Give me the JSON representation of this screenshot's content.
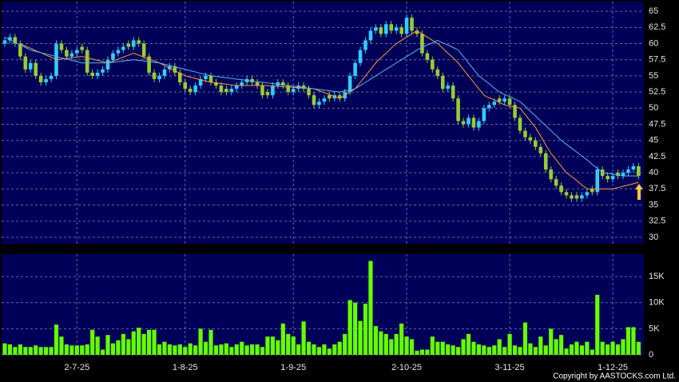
{
  "chart_data": [
    {
      "type": "candlestick",
      "categories": [
        null,
        null,
        null,
        null,
        null,
        null,
        null,
        null,
        null,
        null,
        null,
        null,
        null,
        null,
        "2-7-25",
        null,
        null,
        null,
        null,
        null,
        null,
        null,
        null,
        null,
        null,
        null,
        null,
        null,
        null,
        null,
        null,
        null,
        null,
        null,
        null,
        "1-8-25",
        null,
        null,
        null,
        null,
        null,
        null,
        null,
        null,
        null,
        null,
        null,
        null,
        null,
        null,
        null,
        null,
        null,
        null,
        null,
        null,
        "1-9-25",
        null,
        null,
        null,
        null,
        null,
        null,
        null,
        null,
        null,
        null,
        null,
        null,
        null,
        null,
        null,
        null,
        null,
        null,
        null,
        null,
        null,
        "2-10-25",
        null,
        null,
        null,
        null,
        null,
        null,
        null,
        null,
        null,
        null,
        null,
        null,
        null,
        null,
        null,
        null,
        null,
        null,
        null,
        "3-11-25",
        null,
        null,
        null,
        null,
        null,
        null,
        null,
        null,
        null,
        null,
        null,
        null,
        null,
        null,
        null,
        null,
        null,
        null,
        null,
        "1-12-25",
        null,
        null,
        null,
        null,
        null
      ],
      "open": [
        60,
        60.5,
        61,
        60,
        58,
        56,
        57,
        55,
        54,
        54.5,
        55,
        60,
        59,
        58,
        58.5,
        59.5,
        59,
        55.5,
        55,
        55.5,
        56,
        57.5,
        58.5,
        59,
        60,
        59.5,
        60.5,
        60,
        58,
        55.5,
        54.5,
        55,
        56,
        56.5,
        55.5,
        54,
        53,
        52.5,
        53.5,
        54.5,
        55,
        54,
        53.5,
        53,
        52.5,
        53,
        53.5,
        54,
        54.5,
        54,
        53.5,
        52.5,
        52,
        53.5,
        54,
        53.5,
        52.5,
        53,
        53.5,
        53,
        52,
        50.5,
        51,
        52,
        51.5,
        52,
        51.5,
        52.5,
        55,
        57,
        59,
        60.5,
        62,
        62.5,
        61.5,
        63,
        62,
        62.5,
        61.5,
        64,
        62,
        61.5,
        58.5,
        57.5,
        56,
        55,
        53,
        53.5,
        51.5,
        48,
        47.5,
        48.5,
        47,
        48,
        50,
        50.5,
        51.5,
        51,
        51.5,
        50.5,
        48.5,
        46.5,
        45.5,
        45,
        44,
        43,
        40.5,
        39,
        38,
        37,
        36.5,
        36.5,
        36,
        36.5,
        37.5,
        37,
        40.5,
        39.5,
        39,
        40,
        39.5,
        40,
        40.5,
        41
      ],
      "high": [
        61,
        61.5,
        61.5,
        60.5,
        58.5,
        57.5,
        57.5,
        55.5,
        55,
        55.5,
        60.5,
        60.5,
        59.5,
        59,
        59.5,
        60,
        59.5,
        56,
        56,
        56.5,
        58,
        59,
        59.5,
        60,
        60.5,
        61,
        61,
        60.5,
        58.5,
        56,
        55.5,
        56.5,
        57,
        57,
        56,
        54.5,
        53.5,
        54,
        55,
        55.5,
        55.5,
        54.5,
        54,
        53.5,
        53.5,
        54,
        54.5,
        55,
        55,
        54.5,
        54,
        53,
        54,
        54.5,
        54.5,
        54,
        53.5,
        54,
        54,
        53.5,
        52.5,
        51.5,
        52,
        52.5,
        52.5,
        52.5,
        53,
        55.5,
        57.5,
        59.5,
        61,
        62.5,
        63,
        63,
        63.5,
        63.5,
        63,
        63,
        64.5,
        64.5,
        62.5,
        62,
        59,
        58,
        56.5,
        55.5,
        54,
        54,
        52,
        48.5,
        49,
        49,
        48.5,
        50.5,
        51,
        51.5,
        52,
        52,
        52,
        51,
        49,
        47,
        46,
        45.5,
        44.5,
        43.5,
        41,
        39.5,
        38.5,
        37.5,
        37,
        37,
        37,
        37.5,
        38,
        41,
        41,
        40,
        40,
        40.5,
        40.5,
        41,
        41.5,
        41.5
      ],
      "low": [
        59.5,
        60,
        59.5,
        57.5,
        55.5,
        55.5,
        54.5,
        53.5,
        53.5,
        54,
        54.5,
        58.5,
        57.5,
        57.5,
        58,
        58.5,
        55,
        54.5,
        54.5,
        55,
        55.5,
        57,
        58,
        58.5,
        59,
        59,
        59.5,
        57.5,
        55,
        54,
        54,
        54.5,
        55.5,
        55,
        53.5,
        52.5,
        52,
        52,
        53,
        54,
        53.5,
        53,
        52,
        52,
        52,
        52.5,
        53,
        53.5,
        53.5,
        53,
        51.5,
        51.5,
        51.5,
        53,
        53,
        52,
        52,
        52.5,
        52.5,
        51.5,
        50,
        50,
        50.5,
        51,
        51,
        51,
        51,
        52,
        54.5,
        56.5,
        58.5,
        60,
        61.5,
        61,
        61,
        61.5,
        61.5,
        61,
        61,
        61.5,
        61,
        58,
        57,
        55.5,
        54.5,
        52.5,
        52.5,
        51,
        47.5,
        47,
        47,
        46.5,
        46.5,
        47.5,
        49.5,
        50,
        50.5,
        50.5,
        50,
        48,
        46,
        45,
        44.5,
        43.5,
        42.5,
        40,
        38.5,
        37.5,
        36.5,
        36,
        35.5,
        35.5,
        35.5,
        36,
        36.5,
        36.5,
        39,
        38.5,
        38.5,
        39,
        39,
        39.5,
        40,
        39
      ],
      "close": [
        60.5,
        61,
        60,
        58,
        56,
        57,
        55,
        54,
        54.5,
        55,
        60,
        59,
        58,
        58.5,
        59,
        59,
        55.5,
        55,
        55.5,
        56,
        57.5,
        58.5,
        59,
        59.5,
        59.5,
        60.5,
        60,
        58,
        55.5,
        54.5,
        55,
        56,
        56.5,
        55.5,
        54,
        53,
        52.5,
        53.5,
        54.5,
        55,
        54,
        53.5,
        52.5,
        52.5,
        53,
        53.5,
        54,
        54.5,
        54,
        53.5,
        52,
        52,
        53.5,
        54,
        53.5,
        52.5,
        53,
        53.5,
        53,
        52,
        50.5,
        51,
        51.5,
        51.5,
        52,
        51.5,
        52.5,
        55,
        57,
        59,
        60.5,
        62,
        62.5,
        61.5,
        63,
        62,
        62.5,
        61.5,
        64,
        62,
        61.5,
        58.5,
        57.5,
        56,
        55,
        53,
        53.5,
        51.5,
        48,
        47.5,
        48.5,
        47,
        48,
        50,
        50.5,
        51,
        51,
        51.5,
        50.5,
        48.5,
        46.5,
        45.5,
        45,
        44,
        43,
        40.5,
        39,
        38,
        37,
        36.5,
        36,
        36,
        36.5,
        37,
        37,
        40.5,
        39.5,
        39,
        39.5,
        39.5,
        40,
        40.5,
        41,
        39.5
      ],
      "up_color": "#33ccff",
      "down_color": "#99cc33",
      "series": [
        {
          "color": "#ff9933",
          "values": [
            null,
            null,
            null,
            60,
            59.6,
            59.3,
            58.9,
            58.6,
            58.2,
            57.9,
            57.5,
            57.6,
            57.7,
            57.8,
            57.9,
            58,
            57.8,
            57.6,
            57.4,
            57.2,
            57,
            57.3,
            57.6,
            57.9,
            58.2,
            58.5,
            58.2,
            57.9,
            57.6,
            57.3,
            57,
            56.6,
            56.2,
            55.8,
            55.4,
            55,
            54.8,
            54.6,
            54.4,
            54.2,
            54,
            53.9,
            53.8,
            53.7,
            53.6,
            53.5,
            53.5,
            53.5,
            53.5,
            53.5,
            53.5,
            53.5,
            53.4,
            53.4,
            53.3,
            53.3,
            53.2,
            53.2,
            53.1,
            53.1,
            53,
            52.7,
            52.4,
            52.1,
            51.8,
            51.5,
            52,
            52.5,
            53,
            54,
            55,
            56,
            57,
            57.8,
            58.5,
            59.3,
            60,
            60.5,
            61,
            61.5,
            62,
            61.5,
            61,
            60.5,
            60,
            59.3,
            58.5,
            57.8,
            57,
            56,
            55,
            54,
            53,
            52,
            51.6,
            51.3,
            50.9,
            50.5,
            50.3,
            50.2,
            50,
            49,
            48,
            47,
            45.7,
            44.3,
            43,
            42,
            41,
            40,
            39.4,
            38.8,
            38.1,
            37.5,
            37.5,
            37.5,
            37.5,
            37.5,
            37.5,
            37.7,
            37.9,
            38.1,
            38.3,
            38.5
          ]
        },
        {
          "color": "#55b8ee",
          "values": [
            61,
            60.6,
            60.2,
            59.8,
            59.4,
            59,
            58.8,
            58.6,
            58.4,
            58.2,
            58,
            57.8,
            57.6,
            57.4,
            57.2,
            57,
            57,
            57,
            57,
            57,
            57,
            57.1,
            57.2,
            57.3,
            57.4,
            57.5,
            57.4,
            57.3,
            57.2,
            57.1,
            57,
            56.8,
            56.6,
            56.4,
            56.2,
            56,
            55.8,
            55.6,
            55.4,
            55.2,
            55,
            54.9,
            54.8,
            54.7,
            54.6,
            54.5,
            54.4,
            54.3,
            54.2,
            54.1,
            54,
            53.9,
            53.8,
            53.7,
            53.6,
            53.5,
            53.4,
            53.3,
            53.2,
            53.1,
            53,
            52.9,
            52.8,
            52.7,
            52.6,
            52.5,
            52.7,
            52.8,
            53,
            53.5,
            54,
            54.5,
            55,
            55.5,
            56,
            56.5,
            57,
            57.5,
            58,
            58.5,
            59,
            59.4,
            59.8,
            60.1,
            60.5,
            60.1,
            59.8,
            59.4,
            59,
            58,
            57,
            56,
            55,
            54.4,
            53.8,
            53.1,
            52.5,
            52.1,
            51.8,
            51.4,
            51,
            50.3,
            49.5,
            48.8,
            48,
            47.3,
            46.5,
            45.8,
            45,
            44.4,
            43.8,
            43.2,
            42.6,
            42,
            41.3,
            40.7,
            40,
            39.9,
            39.8,
            39.6,
            39.5,
            39.5,
            39.5,
            39.5
          ]
        }
      ],
      "ylim": [
        29,
        66.5
      ],
      "yticks": [
        30,
        32.5,
        35,
        37.5,
        40,
        42.5,
        45,
        47.5,
        50,
        52.5,
        55,
        57.5,
        60,
        62.5,
        65
      ]
    },
    {
      "type": "bar",
      "color": "#66ff00",
      "values": [
        2200,
        2000,
        1500,
        2000,
        1500,
        1500,
        1800,
        1500,
        1500,
        1500,
        5800,
        3500,
        2000,
        1800,
        1800,
        1800,
        2000,
        4800,
        3500,
        1000,
        3800,
        2200,
        2800,
        4000,
        3000,
        4500,
        5200,
        4000,
        4800,
        4800,
        2000,
        2500,
        2000,
        1800,
        2000,
        1500,
        2200,
        1800,
        5000,
        2500,
        4800,
        1800,
        2000,
        2200,
        1500,
        2000,
        2500,
        1800,
        2000,
        2000,
        1500,
        3500,
        3500,
        2800,
        6000,
        4000,
        3500,
        2000,
        6400,
        2500,
        2000,
        1500,
        2000,
        1200,
        2000,
        2500,
        4000,
        10500,
        10000,
        6500,
        9800,
        18000,
        5500,
        4500,
        4000,
        3000,
        4000,
        6000,
        3500,
        3000,
        800,
        1000,
        1000,
        3500,
        2500,
        2500,
        2000,
        1800,
        1500,
        3000,
        4000,
        2500,
        2000,
        1800,
        1500,
        1800,
        3000,
        1500,
        4000,
        1800,
        1500,
        6200,
        2200,
        1500,
        3500,
        1800,
        5000,
        3000,
        3800,
        1200,
        2000,
        2500,
        1800,
        2500,
        1000,
        11500,
        2500,
        2000,
        2500,
        2000,
        3000,
        5300,
        5300,
        2500
      ],
      "ylim": [
        0,
        19300
      ],
      "yticks": [
        0,
        {
          "value": 5000,
          "label": "5K"
        },
        {
          "value": 10000,
          "label": "10K"
        },
        {
          "value": 15000,
          "label": "15K"
        }
      ]
    }
  ],
  "copyright": "Copyright by AASTOCKS.com Ltd."
}
